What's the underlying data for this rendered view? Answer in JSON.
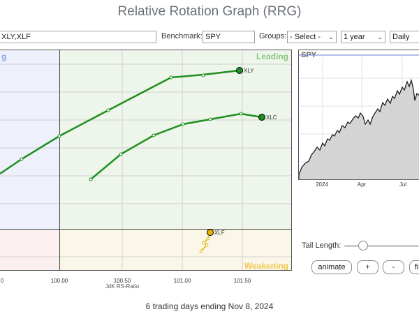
{
  "title": "Relative Rotation Graph (RRG)",
  "controls": {
    "symbols_value": "XLY,XLF",
    "benchmark_label": "Benchmark:",
    "benchmark_value": "SPY",
    "groups_label": "Groups:",
    "groups_value": "- Select -",
    "period_value": "1 year",
    "interval_value": "Daily"
  },
  "quadrants": {
    "leading": "Leading",
    "weakening": "Weakening",
    "lagging_partial": "g"
  },
  "rrg": {
    "x_ticks": [
      "0",
      "100.00",
      "100.50",
      "101.00",
      "101.50"
    ],
    "x_axis_title": "JdK RS-Ratio",
    "tails": [
      {
        "symbol": "XLY",
        "color": "#1e8e1e"
      },
      {
        "symbol": "XLC",
        "color": "#1e8e1e"
      },
      {
        "symbol": "XLF",
        "color": "#e0b400"
      }
    ]
  },
  "benchmark_chart": {
    "label": "SPY",
    "x_labels": [
      "2024",
      "Apr",
      "Jul"
    ]
  },
  "tail_length_label": "Tail Length:",
  "buttons": {
    "animate": "animate",
    "plus": "+",
    "minus": "-",
    "fit": "fi"
  },
  "footer": "6 trading days ending Nov 8, 2024"
}
